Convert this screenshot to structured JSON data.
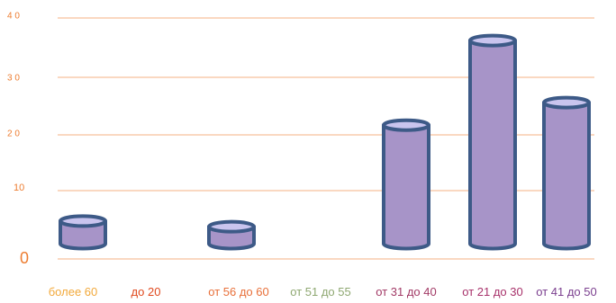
{
  "chart_data": {
    "type": "bar",
    "title": "",
    "xlabel": "",
    "ylabel": "",
    "ylim": [
      0,
      40
    ],
    "y_ticks": [
      "0",
      "10",
      "2 0",
      "3 0",
      "4 0"
    ],
    "y_tick_values": [
      0,
      10,
      20,
      30,
      40
    ],
    "categories": [
      "более 60",
      "до 20",
      "от 56 до 60",
      "от 51 до 55",
      "от 31 до 40",
      "от 21 до 30",
      "от 41 до 50"
    ],
    "values": [
      4,
      0,
      3,
      0,
      21,
      36,
      25
    ],
    "category_colors": [
      "#F2A93B",
      "#E0491E",
      "#E8703A",
      "#8FA872",
      "#A23A66",
      "#A8326B",
      "#7B3F8F"
    ],
    "bar_color": "#A794C8",
    "bar_top_color": "#C9C4EE",
    "bar_edge_color": "#3D5A87",
    "gridline_color": "#F4B183",
    "grid": true,
    "legend": "none"
  }
}
